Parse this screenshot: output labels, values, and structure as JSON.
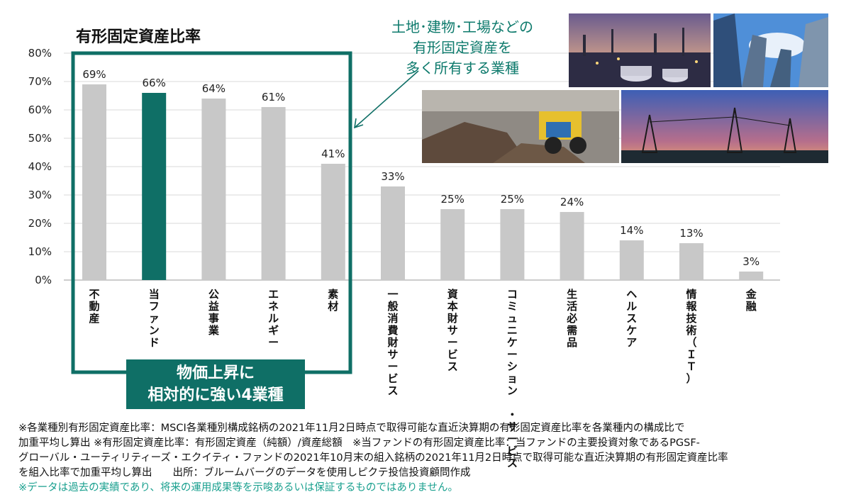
{
  "chart_data": {
    "type": "bar",
    "title": "有形固定資産比率",
    "categories": [
      [
        "不",
        "動",
        "産"
      ],
      [
        "当",
        "フ",
        "ァ",
        "ン",
        "ド"
      ],
      [
        "公",
        "益",
        "事",
        "業"
      ],
      [
        "エ",
        "ネ",
        "ル",
        "ギ",
        "ー"
      ],
      [
        "素",
        "材"
      ],
      [
        "一",
        "般",
        "消",
        "費",
        "財",
        "サ",
        "ー",
        "ビ",
        "ス"
      ],
      [
        "資",
        "本",
        "財",
        "サ",
        "ー",
        "ビ",
        "ス"
      ],
      [
        "コ",
        "ミ",
        "ュ",
        "ニ",
        "ケ",
        "ー",
        "シ",
        "ョ",
        "ン",
        "",
        "・",
        "サ",
        "ー",
        "ビ",
        "ス"
      ],
      [
        "生",
        "活",
        "必",
        "需",
        "品"
      ],
      [
        "ヘ",
        "ル",
        "ス",
        "ケ",
        "ア"
      ],
      [
        "情",
        "報",
        "技",
        "術",
        "（",
        "Ｉ",
        "Ｔ",
        "）"
      ],
      [
        "金",
        "融"
      ]
    ],
    "values": [
      69,
      66,
      64,
      61,
      41,
      33,
      25,
      25,
      24,
      14,
      13,
      3
    ],
    "data_labels": [
      "69%",
      "66%",
      "64%",
      "61%",
      "41%",
      "33%",
      "25%",
      "25%",
      "24%",
      "14%",
      "13%",
      "3%"
    ],
    "ylim": [
      0,
      80
    ],
    "yticks": [
      "0%",
      "10%",
      "20%",
      "30%",
      "40%",
      "50%",
      "60%",
      "70%",
      "80%"
    ],
    "highlight_index": 1,
    "colors": {
      "bar": "#c8c8c8",
      "highlight": "#0f6f66",
      "box": "#0f6f66"
    },
    "grid": true
  },
  "callout_lines": [
    "土地･建物･工場などの",
    "有形固定資産を",
    "多く所有する業種"
  ],
  "banner_lines": [
    "物価上昇に",
    "相対的に強い4業種"
  ],
  "photos": [
    "refinery-photo",
    "office-buildings-photo",
    "mining-truck-photo",
    "power-transmission-towers-photo"
  ],
  "notes": [
    "※各業種別有形固定資産比率：MSCI各業種別構成銘柄の2021年11月2日時点で取得可能な直近決算期の有形固定資産比率を各業種内の構成比で",
    "加重平均し算出 ※有形固定資産比率：有形固定資産（純額）/資産総額　※当ファンドの有形固定資産比率：当ファンドの主要投資対象であるPGSF-",
    "グローバル・ユーティリティーズ・エクイティ・ファンドの2021年10月末の組入銘柄の2021年11月2日時点で取得可能な直近決算期の有形固定資産比率",
    "を組入比率で加重平均し算出　　出所：ブルームバーグのデータを使用しピクテ投信投資顧問作成"
  ],
  "warning": "※データは過去の実績であり、将来の運用成果等を示唆あるいは保証するものではありません。"
}
